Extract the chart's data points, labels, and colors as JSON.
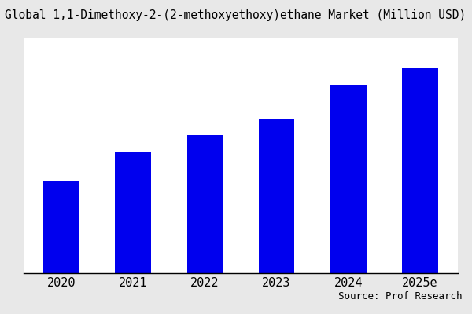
{
  "title": "Global 1,1-Dimethoxy-2-(2-methoxyethoxy)ethane Market (Million USD)",
  "categories": [
    "2020",
    "2021",
    "2022",
    "2023",
    "2024",
    "2025e"
  ],
  "values": [
    55,
    72,
    82,
    92,
    112,
    122
  ],
  "bar_color": "#0000EE",
  "plot_bg_color": "#FFFFFF",
  "fig_bg_color": "#E8E8E8",
  "source_text": "Source: Prof Research",
  "title_fontsize": 10.5,
  "tick_fontsize": 11,
  "source_fontsize": 9,
  "bar_width": 0.5,
  "ylim_max": 140
}
